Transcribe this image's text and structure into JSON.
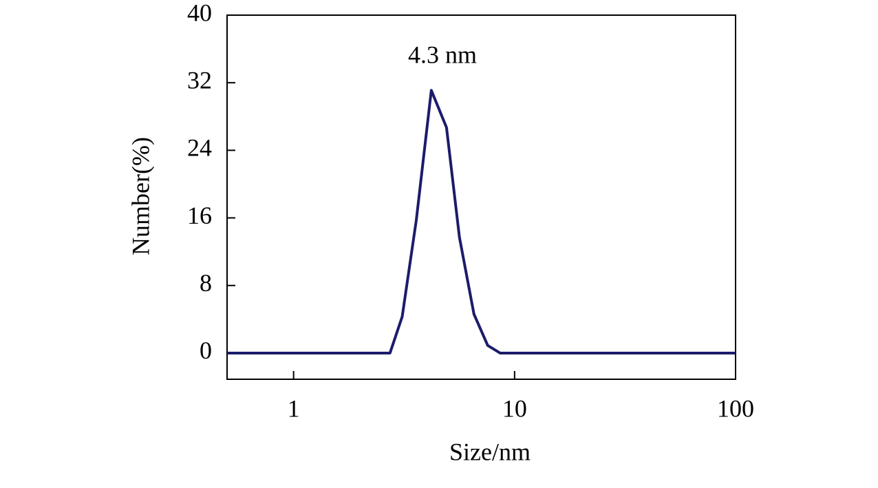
{
  "chart_data": {
    "type": "line",
    "annotation": "4.3 nm",
    "xlabel": "Size/nm",
    "ylabel": "Number(%)",
    "x": [
      0.5,
      2.73,
      3.1,
      3.59,
      4.2,
      4.92,
      5.63,
      6.55,
      7.56,
      8.6,
      100
    ],
    "series": [
      {
        "color": "#1c1c6b",
        "values": [
          0,
          0,
          4.3,
          15.7,
          31.1,
          26.7,
          13.7,
          4.6,
          0.9,
          0,
          0
        ]
      }
    ],
    "xscale": "log",
    "xlim": [
      0.5,
      100
    ],
    "xticks": [
      1,
      10,
      100
    ],
    "ylim": [
      -3.1,
      40
    ],
    "yticks": [
      0,
      8,
      16,
      24,
      32,
      40
    ]
  }
}
